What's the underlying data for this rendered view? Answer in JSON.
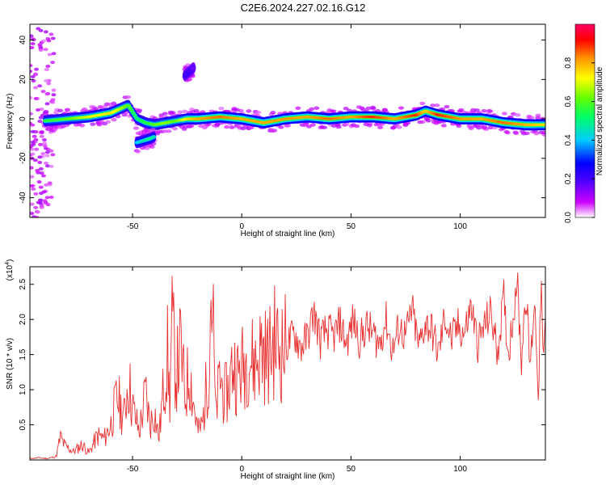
{
  "figure": {
    "title": "C2E6.2024.227.02.16.G12"
  },
  "colorbar": {
    "label": "Normalized spectral amplitude",
    "ticks": [
      0.0,
      0.2,
      0.4,
      0.6,
      0.8
    ],
    "tick_labels": [
      "0.0",
      "0.2",
      "0.4",
      "0.6",
      "0.8"
    ],
    "colors": [
      "#ffffff",
      "#cc00ff",
      "#5500ff",
      "#0000ff",
      "#00ccff",
      "#00ff66",
      "#66ff00",
      "#ffff00",
      "#ff9900",
      "#ff0000",
      "#ff0066"
    ]
  },
  "chart_data": [
    {
      "type": "heatmap",
      "xlabel": "Height of straight line (km)",
      "ylabel": "Frequency (Hz)",
      "xlim": [
        -97,
        139
      ],
      "ylim": [
        -50,
        48
      ],
      "xticks": [
        -50,
        0,
        50,
        100
      ],
      "xtick_labels": [
        "-50",
        "0",
        "50",
        "100"
      ],
      "yticks": [
        -40,
        -20,
        0,
        20,
        40
      ],
      "ytick_labels": [
        "-40",
        "-20",
        "0",
        "20",
        "40"
      ],
      "ridge": {
        "x": [
          -90,
          -80,
          -70,
          -60,
          -52,
          -48,
          -44,
          -40,
          -35,
          -30,
          -25,
          -20,
          -10,
          0,
          10,
          20,
          30,
          40,
          50,
          60,
          70,
          80,
          84,
          90,
          100,
          110,
          120,
          130,
          139
        ],
        "freq": [
          -1,
          0,
          1,
          3,
          7,
          0,
          -2,
          -3,
          -2,
          -1,
          0,
          0,
          1,
          0,
          -2,
          0,
          1,
          0,
          1,
          1,
          0,
          2,
          4,
          2,
          0,
          0,
          -2,
          -3,
          -3
        ],
        "amp": [
          0.55,
          0.6,
          0.7,
          0.75,
          0.6,
          0.5,
          0.55,
          0.6,
          0.65,
          0.6,
          0.75,
          0.8,
          0.85,
          0.8,
          0.8,
          0.82,
          0.8,
          0.85,
          0.8,
          0.9,
          0.8,
          0.9,
          0.75,
          0.9,
          0.82,
          0.8,
          0.85,
          0.8,
          0.75
        ]
      },
      "branch": {
        "x": [
          -48,
          -45,
          -42,
          -40
        ],
        "freq": [
          -12,
          -11,
          -10,
          -9
        ],
        "amp": [
          0.4,
          0.45,
          0.5,
          0.45
        ]
      },
      "fragment": {
        "x": [
          -26,
          -24,
          -22
        ],
        "freq": [
          22,
          24,
          26
        ],
        "amp": [
          0.2,
          0.2,
          0.15
        ]
      },
      "noise_strip_x": [
        -97,
        -86
      ]
    },
    {
      "type": "line",
      "xlabel": "Height of straight line (km)",
      "ylabel": "SNR (10 * v/v)",
      "yexponent_label": "(x10",
      "yexponent_sup": "4",
      "yexponent_close": ")",
      "xlim": [
        -97,
        139
      ],
      "ylim": [
        0,
        2.75
      ],
      "xticks": [
        -50,
        0,
        50,
        100
      ],
      "xtick_labels": [
        "-50",
        "0",
        "50",
        "100"
      ],
      "yticks": [
        0.5,
        1.0,
        1.5,
        2.0,
        2.5
      ],
      "ytick_labels": [
        "0.5",
        "1.0",
        "1.5",
        "2.0",
        "2.5"
      ],
      "color": "#e83030",
      "series": [
        {
          "x": [
            -97,
            -93,
            -89,
            -85,
            -83,
            -81,
            -77,
            -73,
            -70,
            -66,
            -63,
            -60,
            -57,
            -54,
            -52,
            -50,
            -47,
            -44,
            -42,
            -40,
            -38,
            -36,
            -34,
            -33,
            -32,
            -30,
            -28,
            -26,
            -24,
            -22,
            -20,
            -18,
            -16,
            -15,
            -14,
            -13,
            -12,
            -10,
            -8,
            -6,
            -4,
            -2,
            0,
            3,
            6,
            9,
            12,
            15,
            18,
            21,
            24,
            27,
            30,
            33,
            36,
            39,
            42,
            45,
            48,
            51,
            54,
            57,
            60,
            63,
            66,
            69,
            72,
            75,
            78,
            81,
            84,
            87,
            90,
            93,
            96,
            99,
            102,
            105,
            108,
            111,
            114,
            117,
            120,
            122,
            124,
            126,
            128,
            130,
            132,
            134,
            136,
            137,
            138,
            139
          ],
          "y": [
            0.02,
            0.03,
            0.02,
            0.05,
            0.32,
            0.2,
            0.12,
            0.22,
            0.1,
            0.35,
            0.3,
            0.5,
            0.9,
            0.6,
            1.15,
            0.75,
            0.4,
            0.95,
            0.5,
            0.7,
            0.3,
            0.95,
            1.5,
            0.8,
            1.9,
            1.2,
            1.6,
            0.9,
            1.3,
            0.8,
            0.4,
            0.5,
            1.1,
            1.4,
            2.6,
            1.8,
            0.6,
            1.2,
            0.9,
            1.0,
            1.4,
            1.2,
            1.3,
            1.5,
            1.35,
            1.6,
            1.45,
            1.7,
            1.55,
            1.65,
            1.8,
            1.6,
            1.75,
            2.1,
            1.7,
            1.85,
            1.75,
            1.95,
            1.65,
            2.0,
            1.7,
            1.9,
            1.8,
            1.65,
            2.0,
            1.55,
            1.9,
            1.75,
            2.15,
            1.6,
            1.95,
            1.85,
            1.5,
            2.05,
            1.7,
            1.9,
            1.8,
            2.2,
            1.65,
            1.9,
            2.1,
            1.55,
            2.3,
            1.5,
            2.0,
            2.6,
            1.4,
            2.45,
            1.3,
            2.3,
            0.9,
            2.7,
            1.2,
            2.0
          ]
        }
      ]
    }
  ]
}
